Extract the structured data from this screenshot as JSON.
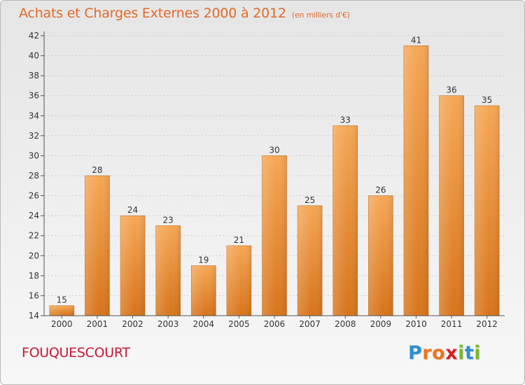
{
  "title": "Achats et Charges Externes 2000 à 2012",
  "subtitle": "(en milliers d'€)",
  "town": "FOUQUESCOURT",
  "logo": {
    "letters": [
      "P",
      "r",
      "o",
      "x",
      "i",
      "t",
      "i"
    ],
    "colors": [
      "#2e8fd0",
      "#e8761e",
      "#e8761e",
      "#d32128",
      "#78b82a",
      "#2e8fd0",
      "#78b82a"
    ]
  },
  "colors": {
    "bar_top": "#f5a755",
    "bar_bottom": "#d7741b",
    "axis": "#555555",
    "grid": "#cccccc",
    "title": "#e06a2a",
    "town": "#c4183a"
  },
  "chart_data": {
    "type": "bar",
    "categories": [
      "2000",
      "2001",
      "2002",
      "2003",
      "2004",
      "2005",
      "2006",
      "2007",
      "2008",
      "2009",
      "2010",
      "2011",
      "2012"
    ],
    "values": [
      15,
      28,
      24,
      23,
      19,
      21,
      30,
      25,
      33,
      26,
      41,
      36,
      35
    ],
    "title": "Achats et Charges Externes 2000 à 2012",
    "xlabel": "",
    "ylabel": "",
    "ylim": [
      14,
      42
    ],
    "yticks": [
      14,
      16,
      18,
      20,
      22,
      24,
      26,
      28,
      30,
      32,
      34,
      36,
      38,
      40,
      42
    ],
    "grid": true,
    "data_labels": true
  }
}
